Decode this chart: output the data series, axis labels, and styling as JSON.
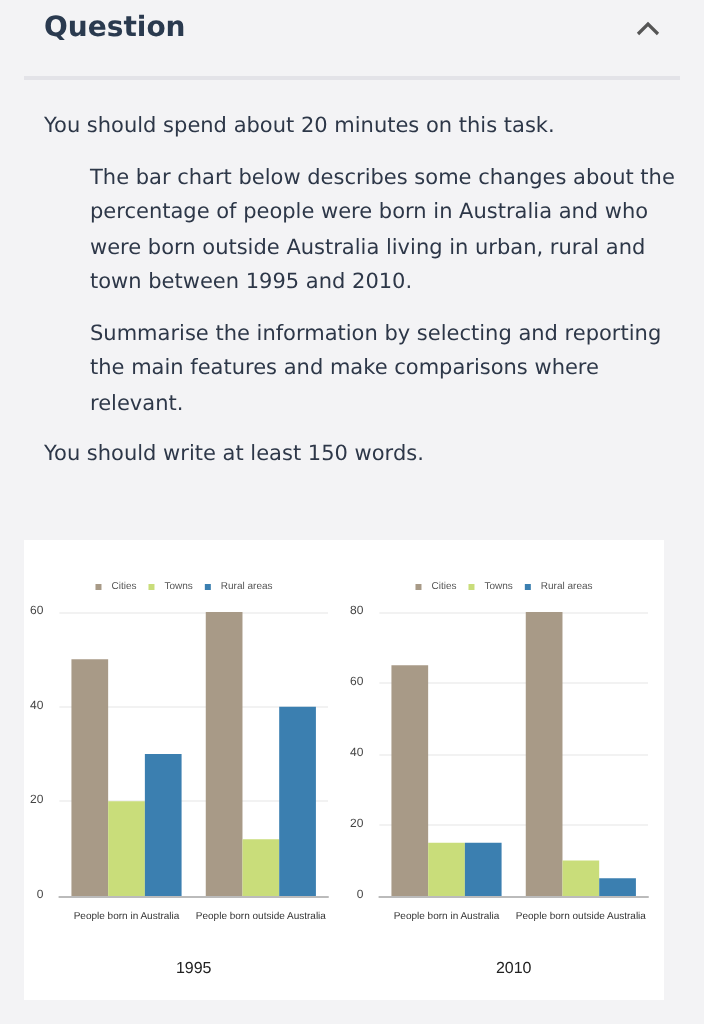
{
  "chart_data": [
    {
      "type": "bar",
      "annotations": [
        "Question",
        "You should spend about 20 minutes on this task.",
        "The bar chart below describes some changes about the percentage of people were born in Australia and who were born outside Australia living in urban, rural and town between 1995 and 2010.",
        "Summarise the information by selecting and reporting the main features and make comparisons where relevant.",
        "You should write at least 150 words."
      ],
      "xlabel": "1995",
      "categories": [
        "People born in Australia",
        "People born outside Australia"
      ],
      "series": [
        {
          "name": "Cities",
          "color": "#a89a87",
          "values": [
            50,
            60
          ]
        },
        {
          "name": "Towns",
          "color": "#c9dd7a",
          "values": [
            20,
            12
          ]
        },
        {
          "name": "Rural areas",
          "color": "#3b7fb0",
          "values": [
            30,
            40
          ]
        }
      ],
      "ylim": [
        0,
        60
      ],
      "yticks": [
        0,
        20,
        40,
        60
      ],
      "grid": "y",
      "legend": "top"
    },
    {
      "type": "bar",
      "xlabel": "2010",
      "categories": [
        "People born in Australia",
        "People born outside Australia"
      ],
      "series": [
        {
          "name": "Cities",
          "color": "#a89a87",
          "values": [
            65,
            80
          ]
        },
        {
          "name": "Towns",
          "color": "#c9dd7a",
          "values": [
            15,
            10
          ]
        },
        {
          "name": "Rural areas",
          "color": "#3b7fb0",
          "values": [
            15,
            5
          ]
        }
      ],
      "ylim": [
        0,
        80
      ],
      "yticks": [
        0,
        20,
        40,
        60,
        80
      ],
      "grid": "y",
      "legend": "top"
    }
  ]
}
